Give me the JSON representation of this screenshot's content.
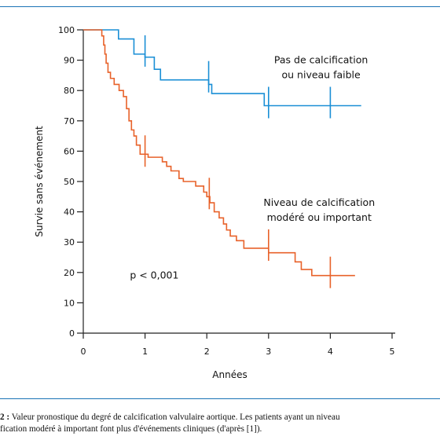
{
  "chart_data": {
    "type": "line",
    "xlabel": "Années",
    "ylabel": "Survie sans événement",
    "xlim": [
      0,
      5
    ],
    "ylim": [
      0,
      100
    ],
    "x_ticks": [
      0,
      1,
      2,
      3,
      4,
      5
    ],
    "y_ticks": [
      0,
      10,
      20,
      30,
      40,
      50,
      60,
      70,
      80,
      90,
      100
    ],
    "grid": false,
    "series": [
      {
        "name": "Pas de calcification ou niveau faible",
        "color": "#1a8fd6",
        "steps": [
          [
            0,
            100
          ],
          [
            0.57,
            100
          ],
          [
            0.57,
            97
          ],
          [
            0.82,
            97
          ],
          [
            0.82,
            92
          ],
          [
            1.0,
            92
          ],
          [
            1.0,
            91
          ],
          [
            1.15,
            91
          ],
          [
            1.15,
            87
          ],
          [
            1.25,
            87
          ],
          [
            1.25,
            83.5
          ],
          [
            2.03,
            83.5
          ],
          [
            2.03,
            82
          ],
          [
            2.08,
            82
          ],
          [
            2.08,
            79
          ],
          [
            2.93,
            79
          ],
          [
            2.93,
            75
          ],
          [
            4.5,
            75
          ]
        ],
        "censor_marks": [
          [
            1.0,
            92
          ],
          [
            2.03,
            83.5
          ],
          [
            3.0,
            75
          ],
          [
            4.0,
            75
          ]
        ]
      },
      {
        "name": "Niveau de calcification modéré ou important",
        "color": "#e8622a",
        "steps": [
          [
            0,
            100
          ],
          [
            0.3,
            100
          ],
          [
            0.3,
            98
          ],
          [
            0.33,
            98
          ],
          [
            0.33,
            95
          ],
          [
            0.35,
            95
          ],
          [
            0.35,
            92
          ],
          [
            0.37,
            92
          ],
          [
            0.37,
            89
          ],
          [
            0.4,
            89
          ],
          [
            0.4,
            86
          ],
          [
            0.44,
            86
          ],
          [
            0.44,
            84
          ],
          [
            0.5,
            84
          ],
          [
            0.5,
            82
          ],
          [
            0.58,
            82
          ],
          [
            0.58,
            80
          ],
          [
            0.65,
            80
          ],
          [
            0.65,
            78
          ],
          [
            0.7,
            78
          ],
          [
            0.7,
            74
          ],
          [
            0.74,
            74
          ],
          [
            0.74,
            70
          ],
          [
            0.78,
            70
          ],
          [
            0.78,
            67
          ],
          [
            0.82,
            67
          ],
          [
            0.82,
            65
          ],
          [
            0.86,
            65
          ],
          [
            0.86,
            62
          ],
          [
            0.92,
            62
          ],
          [
            0.92,
            59
          ],
          [
            1.05,
            59
          ],
          [
            1.05,
            58
          ],
          [
            1.28,
            58
          ],
          [
            1.28,
            56.5
          ],
          [
            1.35,
            56.5
          ],
          [
            1.35,
            55
          ],
          [
            1.42,
            55
          ],
          [
            1.42,
            53.5
          ],
          [
            1.55,
            53.5
          ],
          [
            1.55,
            51
          ],
          [
            1.62,
            51
          ],
          [
            1.62,
            50
          ],
          [
            1.82,
            50
          ],
          [
            1.82,
            48.5
          ],
          [
            1.95,
            48.5
          ],
          [
            1.95,
            46.5
          ],
          [
            2.0,
            46.5
          ],
          [
            2.0,
            45
          ],
          [
            2.05,
            45
          ],
          [
            2.05,
            43
          ],
          [
            2.12,
            43
          ],
          [
            2.12,
            40
          ],
          [
            2.2,
            40
          ],
          [
            2.2,
            38
          ],
          [
            2.27,
            38
          ],
          [
            2.27,
            36
          ],
          [
            2.32,
            36
          ],
          [
            2.32,
            34
          ],
          [
            2.38,
            34
          ],
          [
            2.38,
            32
          ],
          [
            2.48,
            32
          ],
          [
            2.48,
            30.5
          ],
          [
            2.6,
            30.5
          ],
          [
            2.6,
            28
          ],
          [
            3.0,
            28
          ],
          [
            3.0,
            26.5
          ],
          [
            3.43,
            26.5
          ],
          [
            3.43,
            23.5
          ],
          [
            3.53,
            23.5
          ],
          [
            3.53,
            21
          ],
          [
            3.7,
            21
          ],
          [
            3.7,
            19
          ],
          [
            4.4,
            19
          ]
        ],
        "censor_marks": [
          [
            1.0,
            59
          ],
          [
            2.04,
            45
          ],
          [
            3.0,
            28
          ],
          [
            4.0,
            19
          ]
        ]
      }
    ],
    "annotations": [
      {
        "lines": [
          "Pas de calcification",
          "ou niveau faible"
        ],
        "x": 3.85,
        "y": 89
      },
      {
        "lines": [
          "Niveau de calcification",
          "modéré ou important"
        ],
        "x": 3.82,
        "y": 42
      },
      {
        "lines": [
          "p < 0,001"
        ],
        "x": 1.15,
        "y": 18
      }
    ]
  },
  "caption": {
    "line1_bold": "2 :",
    "line1": " Valeur pronostique du degré de calcification valvulaire aortique. Les patients ayant un niveau",
    "line2": "fication modéré à important font plus d'événements cliniques (d'après [1])."
  }
}
